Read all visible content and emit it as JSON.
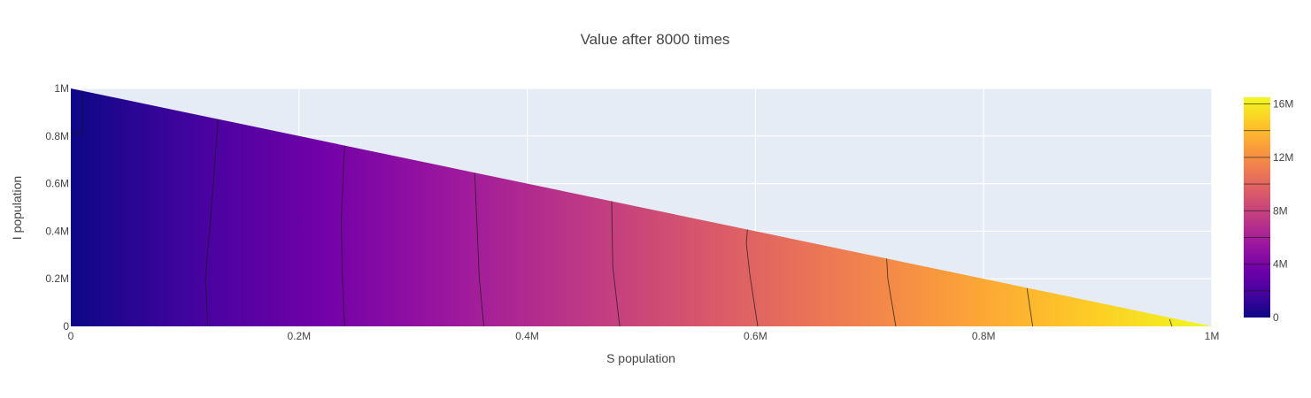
{
  "chart_data": {
    "type": "contour",
    "title": "Value after 8000 times",
    "xlabel": "S population",
    "ylabel": "I population",
    "xlim": [
      0,
      1000000
    ],
    "ylim": [
      0,
      1000000
    ],
    "x_ticks": [
      {
        "value": 0,
        "label": "0"
      },
      {
        "value": 200000,
        "label": "0.2M"
      },
      {
        "value": 400000,
        "label": "0.4M"
      },
      {
        "value": 600000,
        "label": "0.6M"
      },
      {
        "value": 800000,
        "label": "0.8M"
      },
      {
        "value": 1000000,
        "label": "1M"
      }
    ],
    "y_ticks": [
      {
        "value": 0,
        "label": "0"
      },
      {
        "value": 200000,
        "label": "0.2M"
      },
      {
        "value": 400000,
        "label": "0.4M"
      },
      {
        "value": 600000,
        "label": "0.6M"
      },
      {
        "value": 800000,
        "label": "0.8M"
      },
      {
        "value": 1000000,
        "label": "1M"
      }
    ],
    "domain": "S + I <= 1M (triangular region)",
    "z_range": [
      0,
      16500000
    ],
    "colorscale": [
      "#0d0887",
      "#46039f",
      "#7201a8",
      "#9c179e",
      "#bd3786",
      "#d8576b",
      "#ed7953",
      "#fb9f3a",
      "#fdca26",
      "#f0f921"
    ],
    "colorbar_ticks": [
      {
        "value": 0,
        "label": "0"
      },
      {
        "value": 4000000,
        "label": "4M"
      },
      {
        "value": 8000000,
        "label": "8M"
      },
      {
        "value": 12000000,
        "label": "12M"
      },
      {
        "value": 16000000,
        "label": "16M"
      }
    ],
    "contour_levels": [
      {
        "value": 2000000,
        "points": [
          [
            120000,
            0
          ],
          [
            118000,
            200000
          ],
          [
            125000,
            600000
          ],
          [
            129000,
            870000
          ]
        ]
      },
      {
        "value": 4000000,
        "points": [
          [
            240000,
            0
          ],
          [
            238000,
            200000
          ],
          [
            237000,
            450000
          ],
          [
            240000,
            760000
          ]
        ]
      },
      {
        "value": 6000000,
        "points": [
          [
            362000,
            0
          ],
          [
            358000,
            200000
          ],
          [
            354000,
            645000
          ]
        ]
      },
      {
        "value": 8000000,
        "points": [
          [
            481000,
            0
          ],
          [
            475000,
            250000
          ],
          [
            474000,
            527000
          ]
        ]
      },
      {
        "value": 10000000,
        "points": [
          [
            602000,
            0
          ],
          [
            595000,
            220000
          ],
          [
            592000,
            350000
          ],
          [
            593000,
            408000
          ]
        ]
      },
      {
        "value": 12000000,
        "points": [
          [
            723000,
            0
          ],
          [
            716000,
            200000
          ],
          [
            715000,
            285000
          ]
        ]
      },
      {
        "value": 14000000,
        "points": [
          [
            843000,
            0
          ],
          [
            838000,
            160000
          ]
        ]
      },
      {
        "value": 16000000,
        "points": [
          [
            965000,
            0
          ],
          [
            963000,
            30000
          ]
        ]
      }
    ]
  }
}
